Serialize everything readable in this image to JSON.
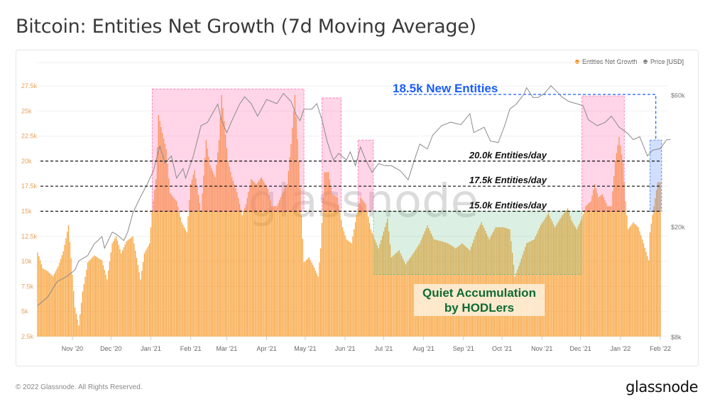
{
  "title": "Bitcoin: Entities Net Growth (7d Moving Average)",
  "footer": "© 2022 Glassnode. All Rights Reserved.",
  "logo": "glassnode",
  "watermark": "glassnode",
  "colors": {
    "bars": "#f7931a",
    "price": "#888888",
    "highlight_pink": "#ff69b4",
    "highlight_green": "#66c08a",
    "highlight_blue": "#5a8cff",
    "annotation_blue": "#1a5cff",
    "annotation_green": "#0e6b36"
  },
  "legend": [
    {
      "label": "Entities Net Growth",
      "color": "#f7931a"
    },
    {
      "label": "Price [USD]",
      "color": "#777777"
    }
  ],
  "annotations": {
    "new_entities": "18.5k New Entities",
    "thresholds": [
      {
        "value": 20000,
        "label": "20.0k Entities/day"
      },
      {
        "value": 17500,
        "label": "17.5k Entities/day"
      },
      {
        "value": 15000,
        "label": "15.0k Entities/day"
      }
    ],
    "quiet_line1": "Quiet Accumulation",
    "quiet_line2": "by HODLers"
  },
  "chart_data": {
    "type": "bar",
    "title": "Bitcoin: Entities Net Growth (7d Moving Average)",
    "grid": true,
    "legend_position": "top-right",
    "x_ticks": [
      "Nov '20",
      "Dec '20",
      "Jan '21",
      "Feb '21",
      "Mar '21",
      "Apr '21",
      "May '21",
      "Jun '21",
      "Jul '21",
      "Aug '21",
      "Sep '21",
      "Oct '21",
      "Nov '21",
      "Dec '21",
      "Jan '22",
      "Feb '22"
    ],
    "y_left": {
      "ticks": [
        "2.5k",
        "5k",
        "7.5k",
        "10k",
        "12.5k",
        "15k",
        "17.5k",
        "20k",
        "22.5k",
        "25k",
        "27.5k"
      ],
      "range": [
        2500,
        27500
      ]
    },
    "y_right": {
      "scale": "log",
      "ticks": [
        "$8k",
        "$20k",
        "$60k"
      ],
      "tick_values": [
        8000,
        20000,
        60000
      ]
    },
    "series": [
      {
        "name": "Entities Net Growth",
        "type": "bar",
        "axis": "left",
        "points": [
          [
            "2020-10-05",
            10900
          ],
          [
            "2020-10-09",
            9300
          ],
          [
            "2020-10-13",
            9000
          ],
          [
            "2020-10-17",
            8500
          ],
          [
            "2020-10-21",
            9500
          ],
          [
            "2020-10-25",
            11000
          ],
          [
            "2020-10-29",
            13600
          ],
          [
            "2020-11-03",
            5400
          ],
          [
            "2020-11-06",
            3600
          ],
          [
            "2020-11-09",
            7000
          ],
          [
            "2020-11-13",
            9900
          ],
          [
            "2020-11-18",
            10600
          ],
          [
            "2020-11-24",
            10100
          ],
          [
            "2020-11-28",
            8200
          ],
          [
            "2020-12-02",
            11800
          ],
          [
            "2020-12-05",
            12500
          ],
          [
            "2020-12-09",
            10800
          ],
          [
            "2020-12-13",
            12000
          ],
          [
            "2020-12-18",
            12500
          ],
          [
            "2020-12-24",
            8200
          ],
          [
            "2020-12-27",
            10800
          ],
          [
            "2020-12-31",
            11800
          ],
          [
            "2021-01-02",
            15000
          ],
          [
            "2021-01-05",
            18200
          ],
          [
            "2021-01-07",
            24600
          ],
          [
            "2021-01-10",
            22800
          ],
          [
            "2021-01-13",
            21200
          ],
          [
            "2021-01-16",
            16800
          ],
          [
            "2021-01-21",
            16000
          ],
          [
            "2021-01-25",
            13900
          ],
          [
            "2021-01-29",
            12900
          ],
          [
            "2021-02-01",
            17700
          ],
          [
            "2021-02-04",
            19100
          ],
          [
            "2021-02-09",
            15000
          ],
          [
            "2021-02-13",
            22100
          ],
          [
            "2021-02-16",
            19600
          ],
          [
            "2021-02-20",
            18400
          ],
          [
            "2021-02-23",
            22100
          ],
          [
            "2021-02-25",
            26600
          ],
          [
            "2021-02-27",
            24000
          ],
          [
            "2021-03-02",
            20000
          ],
          [
            "2021-03-05",
            18400
          ],
          [
            "2021-03-09",
            16900
          ],
          [
            "2021-03-13",
            14600
          ],
          [
            "2021-03-16",
            15700
          ],
          [
            "2021-03-20",
            18200
          ],
          [
            "2021-03-24",
            17700
          ],
          [
            "2021-03-28",
            18400
          ],
          [
            "2021-04-02",
            17200
          ],
          [
            "2021-04-05",
            15500
          ],
          [
            "2021-04-09",
            15500
          ],
          [
            "2021-04-13",
            16700
          ],
          [
            "2021-04-17",
            17700
          ],
          [
            "2021-04-20",
            21700
          ],
          [
            "2021-04-23",
            26600
          ],
          [
            "2021-04-26",
            20000
          ],
          [
            "2021-04-28",
            14600
          ],
          [
            "2021-04-30",
            9900
          ],
          [
            "2021-05-04",
            10400
          ],
          [
            "2021-05-08",
            9400
          ],
          [
            "2021-05-11",
            8500
          ],
          [
            "2021-05-13",
            11300
          ],
          [
            "2021-05-16",
            18900
          ],
          [
            "2021-05-19",
            18900
          ],
          [
            "2021-05-22",
            16700
          ],
          [
            "2021-05-26",
            16400
          ],
          [
            "2021-05-30",
            13400
          ],
          [
            "2021-06-02",
            12200
          ],
          [
            "2021-06-06",
            11800
          ],
          [
            "2021-06-10",
            14600
          ],
          [
            "2021-06-13",
            16400
          ],
          [
            "2021-06-17",
            15700
          ],
          [
            "2021-06-21",
            13200
          ],
          [
            "2021-06-24",
            12200
          ],
          [
            "2021-06-27",
            11300
          ],
          [
            "2021-07-02",
            13400
          ],
          [
            "2021-07-04",
            14300
          ],
          [
            "2021-07-07",
            10400
          ],
          [
            "2021-07-13",
            11100
          ],
          [
            "2021-07-18",
            9700
          ],
          [
            "2021-07-24",
            10800
          ],
          [
            "2021-07-29",
            11800
          ],
          [
            "2021-08-04",
            13600
          ],
          [
            "2021-08-09",
            12200
          ],
          [
            "2021-08-15",
            12000
          ],
          [
            "2021-08-20",
            11800
          ],
          [
            "2021-08-26",
            11300
          ],
          [
            "2021-08-31",
            11800
          ],
          [
            "2021-09-06",
            11100
          ],
          [
            "2021-09-11",
            12900
          ],
          [
            "2021-09-15",
            13900
          ],
          [
            "2021-09-21",
            12200
          ],
          [
            "2021-09-26",
            13400
          ],
          [
            "2021-10-02",
            13400
          ],
          [
            "2021-10-07",
            13200
          ],
          [
            "2021-10-11",
            8500
          ],
          [
            "2021-10-15",
            9900
          ],
          [
            "2021-10-20",
            11800
          ],
          [
            "2021-10-26",
            12200
          ],
          [
            "2021-10-31",
            13600
          ],
          [
            "2021-11-06",
            14800
          ],
          [
            "2021-11-11",
            13400
          ],
          [
            "2021-11-17",
            14600
          ],
          [
            "2021-11-21",
            15300
          ],
          [
            "2021-11-24",
            14100
          ],
          [
            "2021-11-28",
            13200
          ],
          [
            "2021-12-02",
            14300
          ],
          [
            "2021-12-05",
            15500
          ],
          [
            "2021-12-09",
            16000
          ],
          [
            "2021-12-12",
            17700
          ],
          [
            "2021-12-15",
            16400
          ],
          [
            "2021-12-18",
            16700
          ],
          [
            "2021-12-22",
            15500
          ],
          [
            "2021-12-25",
            15500
          ],
          [
            "2021-12-28",
            20000
          ],
          [
            "2021-12-31",
            22400
          ],
          [
            "2022-01-03",
            19800
          ],
          [
            "2022-01-05",
            16000
          ],
          [
            "2022-01-07",
            13200
          ],
          [
            "2022-01-11",
            13900
          ],
          [
            "2022-01-15",
            13400
          ],
          [
            "2022-01-19",
            11800
          ],
          [
            "2022-01-23",
            10100
          ],
          [
            "2022-01-24",
            12900
          ],
          [
            "2022-01-27",
            15500
          ],
          [
            "2022-01-30",
            17900
          ],
          [
            "2022-02-01",
            17900
          ]
        ]
      },
      {
        "name": "Price [USD]",
        "type": "line",
        "axis": "right",
        "points": [
          [
            "2020-10-05",
            10400
          ],
          [
            "2020-10-13",
            11200
          ],
          [
            "2020-10-20",
            12700
          ],
          [
            "2020-10-28",
            13300
          ],
          [
            "2020-11-03",
            14000
          ],
          [
            "2020-11-06",
            15100
          ],
          [
            "2020-11-13",
            15800
          ],
          [
            "2020-11-18",
            17400
          ],
          [
            "2020-11-24",
            18500
          ],
          [
            "2020-11-26",
            16800
          ],
          [
            "2020-12-02",
            19200
          ],
          [
            "2020-12-05",
            18900
          ],
          [
            "2020-12-11",
            17900
          ],
          [
            "2020-12-14",
            19200
          ],
          [
            "2020-12-18",
            22500
          ],
          [
            "2020-12-24",
            25800
          ],
          [
            "2020-12-29",
            28500
          ],
          [
            "2021-01-03",
            32000
          ],
          [
            "2021-01-08",
            39400
          ],
          [
            "2021-01-12",
            34100
          ],
          [
            "2021-01-17",
            36200
          ],
          [
            "2021-01-21",
            30100
          ],
          [
            "2021-01-26",
            32600
          ],
          [
            "2021-01-28",
            30100
          ],
          [
            "2021-02-03",
            36200
          ],
          [
            "2021-02-09",
            46600
          ],
          [
            "2021-02-14",
            47900
          ],
          [
            "2021-02-22",
            55800
          ],
          [
            "2021-02-25",
            48600
          ],
          [
            "2021-03-01",
            44000
          ],
          [
            "2021-03-05",
            48600
          ],
          [
            "2021-03-11",
            55800
          ],
          [
            "2021-03-15",
            59300
          ],
          [
            "2021-03-20",
            56000
          ],
          [
            "2021-03-25",
            50500
          ],
          [
            "2021-04-01",
            58000
          ],
          [
            "2021-04-09",
            56000
          ],
          [
            "2021-04-14",
            61000
          ],
          [
            "2021-04-20",
            57000
          ],
          [
            "2021-04-24",
            51000
          ],
          [
            "2021-04-27",
            48600
          ],
          [
            "2021-04-30",
            53500
          ],
          [
            "2021-05-06",
            53500
          ],
          [
            "2021-05-10",
            56000
          ],
          [
            "2021-05-14",
            49000
          ],
          [
            "2021-05-18",
            41000
          ],
          [
            "2021-05-21",
            37000
          ],
          [
            "2021-05-23",
            35000
          ],
          [
            "2021-05-27",
            37000
          ],
          [
            "2021-06-02",
            35000
          ],
          [
            "2021-06-05",
            37500
          ],
          [
            "2021-06-09",
            33400
          ],
          [
            "2021-06-13",
            39000
          ],
          [
            "2021-06-17",
            35000
          ],
          [
            "2021-06-22",
            31600
          ],
          [
            "2021-06-27",
            34000
          ],
          [
            "2021-07-02",
            33400
          ],
          [
            "2021-07-07",
            33400
          ],
          [
            "2021-07-14",
            32000
          ],
          [
            "2021-07-20",
            29700
          ],
          [
            "2021-07-24",
            34000
          ],
          [
            "2021-07-29",
            40000
          ],
          [
            "2021-08-04",
            38400
          ],
          [
            "2021-08-08",
            43000
          ],
          [
            "2021-08-15",
            46600
          ],
          [
            "2021-08-22",
            48000
          ],
          [
            "2021-08-30",
            47000
          ],
          [
            "2021-09-06",
            51500
          ],
          [
            "2021-09-09",
            44000
          ],
          [
            "2021-09-17",
            46000
          ],
          [
            "2021-09-22",
            41000
          ],
          [
            "2021-09-28",
            40500
          ],
          [
            "2021-10-03",
            46600
          ],
          [
            "2021-10-07",
            53500
          ],
          [
            "2021-10-12",
            55800
          ],
          [
            "2021-10-18",
            60600
          ],
          [
            "2021-10-20",
            64000
          ],
          [
            "2021-10-25",
            59000
          ],
          [
            "2021-10-29",
            59000
          ],
          [
            "2021-11-03",
            61000
          ],
          [
            "2021-11-08",
            65000
          ],
          [
            "2021-11-17",
            59000
          ],
          [
            "2021-11-22",
            57000
          ],
          [
            "2021-11-28",
            56000
          ],
          [
            "2021-12-03",
            55000
          ],
          [
            "2021-12-07",
            49000
          ],
          [
            "2021-12-14",
            46600
          ],
          [
            "2021-12-20",
            47900
          ],
          [
            "2021-12-25",
            50500
          ],
          [
            "2021-12-31",
            46000
          ],
          [
            "2022-01-06",
            44000
          ],
          [
            "2022-01-11",
            41500
          ],
          [
            "2022-01-16",
            42500
          ],
          [
            "2022-01-22",
            36200
          ],
          [
            "2022-01-26",
            38000
          ],
          [
            "2022-02-01",
            38500
          ],
          [
            "2022-02-06",
            41500
          ],
          [
            "2022-02-09",
            41500
          ]
        ]
      }
    ]
  }
}
